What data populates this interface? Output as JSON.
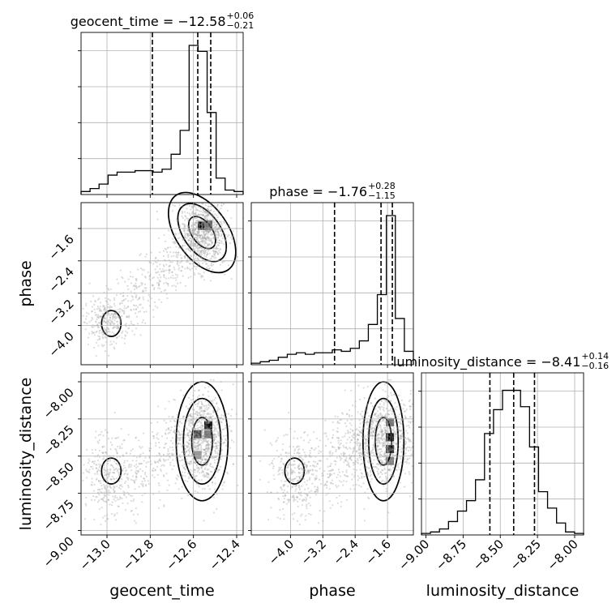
{
  "chart_data": {
    "type": "scatter",
    "kind": "corner-plot",
    "grid": true,
    "parameters": [
      {
        "name": "geocent_time",
        "title_base": "geocent_time = −12.58",
        "title_plus": "+0.06",
        "title_minus": "−0.21",
        "lim": [
          -13.12,
          -12.37
        ],
        "ticks": [
          -13.0,
          -12.8,
          -12.6,
          -12.4
        ],
        "tick_labels": [
          "−13.0",
          "−12.8",
          "−12.6",
          "−12.4"
        ],
        "quantiles": [
          -12.79,
          -12.58,
          -12.52
        ],
        "hist": [
          0.02,
          0.04,
          0.07,
          0.13,
          0.15,
          0.15,
          0.16,
          0.16,
          0.15,
          0.17,
          0.27,
          0.43,
          1.0,
          0.96,
          0.55,
          0.11,
          0.03,
          0.02
        ]
      },
      {
        "name": "phase",
        "title_base": "phase = −1.76",
        "title_plus": "+0.28",
        "title_minus": "−1.15",
        "lim": [
          -4.97,
          -0.96
        ],
        "ticks": [
          -4.0,
          -3.2,
          -2.4,
          -1.6
        ],
        "tick_labels": [
          "−4.0",
          "−3.2",
          "−2.4",
          "−1.6"
        ],
        "quantiles": [
          -2.91,
          -1.76,
          -1.48
        ],
        "hist": [
          0.01,
          0.02,
          0.03,
          0.05,
          0.07,
          0.08,
          0.07,
          0.08,
          0.08,
          0.1,
          0.09,
          0.11,
          0.16,
          0.27,
          0.47,
          1.0,
          0.31,
          0.09
        ]
      },
      {
        "name": "luminosity_distance",
        "title_base": "luminosity_distance = −8.41",
        "title_plus": "+0.14",
        "title_minus": "−0.16",
        "lim": [
          -9.03,
          -7.94
        ],
        "ticks": [
          -9.0,
          -8.75,
          -8.5,
          -8.25,
          -8.0
        ],
        "tick_labels": [
          "−9.00",
          "−8.75",
          "−8.50",
          "−8.25",
          "−8.00"
        ],
        "quantiles": [
          -8.57,
          -8.41,
          -8.27
        ],
        "hist": [
          0.01,
          0.02,
          0.04,
          0.09,
          0.16,
          0.23,
          0.37,
          0.68,
          0.84,
          0.97,
          0.97,
          0.86,
          0.59,
          0.29,
          0.18,
          0.08,
          0.02,
          0.01
        ]
      }
    ],
    "pairs": [
      {
        "x": "geocent_time",
        "y": "phase",
        "cells": [
          [
            -12.58,
            -1.63,
            1.0
          ],
          [
            -12.55,
            -1.63,
            0.85
          ],
          [
            -12.55,
            -1.6,
            0.6
          ]
        ]
      },
      {
        "x": "geocent_time",
        "y": "luminosity_distance",
        "cells": [
          [
            -12.55,
            -8.32,
            0.9
          ],
          [
            -12.6,
            -8.38,
            0.75
          ],
          [
            -12.55,
            -8.38,
            0.55
          ],
          [
            -12.6,
            -8.52,
            0.4
          ]
        ]
      },
      {
        "x": "phase",
        "y": "luminosity_distance",
        "cells": [
          [
            -1.64,
            -8.4,
            0.95
          ],
          [
            -1.64,
            -8.48,
            0.8
          ],
          [
            -1.64,
            -8.3,
            0.55
          ],
          [
            -1.64,
            -8.56,
            0.5
          ]
        ]
      }
    ]
  }
}
